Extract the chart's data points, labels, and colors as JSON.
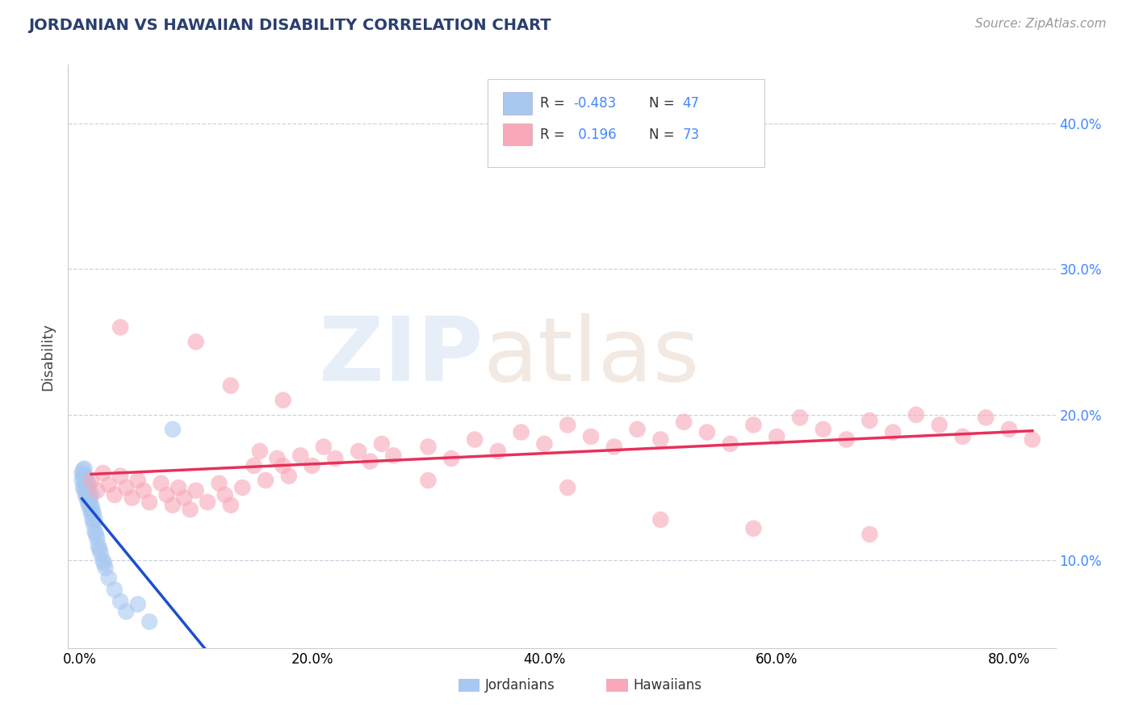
{
  "title": "JORDANIAN VS HAWAIIAN DISABILITY CORRELATION CHART",
  "source": "Source: ZipAtlas.com",
  "xlim": [
    0.0,
    0.84
  ],
  "ylim": [
    0.04,
    0.44
  ],
  "ylabel": "Disability",
  "R_jordanian": -0.483,
  "N_jordanian": 47,
  "R_hawaiian": 0.196,
  "N_hawaiian": 73,
  "jordanian_color": "#a8c8f0",
  "jordanian_line_color": "#1a4fcc",
  "hawaiian_color": "#f8a8b8",
  "hawaiian_line_color": "#e8305a",
  "jordanian_x": [
    0.002,
    0.002,
    0.003,
    0.003,
    0.003,
    0.004,
    0.004,
    0.004,
    0.004,
    0.005,
    0.005,
    0.005,
    0.006,
    0.006,
    0.006,
    0.007,
    0.007,
    0.007,
    0.008,
    0.008,
    0.008,
    0.009,
    0.009,
    0.01,
    0.01,
    0.01,
    0.011,
    0.011,
    0.012,
    0.012,
    0.013,
    0.013,
    0.014,
    0.015,
    0.016,
    0.017,
    0.018,
    0.02,
    0.021,
    0.022,
    0.025,
    0.03,
    0.035,
    0.04,
    0.05,
    0.06,
    0.08
  ],
  "jordanian_y": [
    0.155,
    0.16,
    0.15,
    0.158,
    0.162,
    0.148,
    0.153,
    0.158,
    0.163,
    0.145,
    0.152,
    0.157,
    0.143,
    0.15,
    0.155,
    0.14,
    0.147,
    0.153,
    0.138,
    0.145,
    0.15,
    0.135,
    0.142,
    0.132,
    0.138,
    0.145,
    0.128,
    0.135,
    0.125,
    0.132,
    0.12,
    0.128,
    0.118,
    0.115,
    0.11,
    0.108,
    0.105,
    0.1,
    0.098,
    0.095,
    0.088,
    0.08,
    0.072,
    0.065,
    0.07,
    0.058,
    0.19
  ],
  "hawaiian_x": [
    0.01,
    0.015,
    0.02,
    0.025,
    0.03,
    0.035,
    0.04,
    0.045,
    0.05,
    0.055,
    0.06,
    0.07,
    0.075,
    0.08,
    0.085,
    0.09,
    0.095,
    0.1,
    0.11,
    0.12,
    0.125,
    0.13,
    0.14,
    0.15,
    0.155,
    0.16,
    0.17,
    0.175,
    0.18,
    0.19,
    0.2,
    0.21,
    0.22,
    0.24,
    0.25,
    0.26,
    0.27,
    0.3,
    0.32,
    0.34,
    0.36,
    0.38,
    0.4,
    0.42,
    0.44,
    0.46,
    0.48,
    0.5,
    0.52,
    0.54,
    0.56,
    0.58,
    0.6,
    0.62,
    0.64,
    0.66,
    0.68,
    0.7,
    0.72,
    0.74,
    0.76,
    0.78,
    0.8,
    0.82,
    0.035,
    0.1,
    0.13,
    0.175,
    0.3,
    0.42,
    0.5,
    0.58,
    0.68
  ],
  "hawaiian_y": [
    0.155,
    0.148,
    0.16,
    0.152,
    0.145,
    0.158,
    0.15,
    0.143,
    0.155,
    0.148,
    0.14,
    0.153,
    0.145,
    0.138,
    0.15,
    0.143,
    0.135,
    0.148,
    0.14,
    0.153,
    0.145,
    0.138,
    0.15,
    0.165,
    0.175,
    0.155,
    0.17,
    0.165,
    0.158,
    0.172,
    0.165,
    0.178,
    0.17,
    0.175,
    0.168,
    0.18,
    0.172,
    0.178,
    0.17,
    0.183,
    0.175,
    0.188,
    0.18,
    0.193,
    0.185,
    0.178,
    0.19,
    0.183,
    0.195,
    0.188,
    0.18,
    0.193,
    0.185,
    0.198,
    0.19,
    0.183,
    0.196,
    0.188,
    0.2,
    0.193,
    0.185,
    0.198,
    0.19,
    0.183,
    0.26,
    0.25,
    0.22,
    0.21,
    0.155,
    0.15,
    0.128,
    0.122,
    0.118
  ]
}
